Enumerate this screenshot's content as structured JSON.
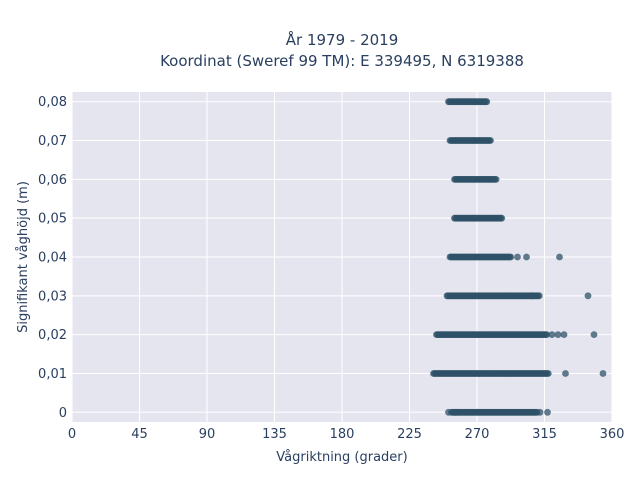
{
  "chart_data": {
    "type": "scatter",
    "title_line1": "År 1979 - 2019",
    "title_line2": "Koordinat (Sweref 99 TM): E 339495, N 6319388",
    "xlabel": "Vågriktning (grader)",
    "ylabel": "Signifikant våghöjd (m)",
    "xlim": [
      0,
      360
    ],
    "ylim": [
      -0.0025,
      0.0825
    ],
    "x_ticks": [
      0,
      45,
      90,
      135,
      180,
      225,
      270,
      315,
      360
    ],
    "x_tick_labels": [
      "0",
      "45",
      "90",
      "135",
      "180",
      "225",
      "270",
      "315",
      "360"
    ],
    "y_ticks": [
      0,
      0.01,
      0.02,
      0.03,
      0.04,
      0.05,
      0.06,
      0.07,
      0.08
    ],
    "y_tick_labels": [
      "0",
      "0,01",
      "0,02",
      "0,03",
      "0,04",
      "0,05",
      "0,06",
      "0,07",
      "0,08"
    ],
    "grid": true,
    "background": "#e5e5f0",
    "marker_color": "#2f5168",
    "bands": [
      {
        "y": 0.08,
        "x_start": 251,
        "x_end": 277
      },
      {
        "y": 0.07,
        "x_start": 252,
        "x_end": 279
      },
      {
        "y": 0.06,
        "x_start": 255,
        "x_end": 283
      },
      {
        "y": 0.05,
        "x_start": 255,
        "x_end": 287
      },
      {
        "y": 0.04,
        "x_start": 252,
        "x_end": 293
      },
      {
        "y": 0.03,
        "x_start": 250,
        "x_end": 312
      },
      {
        "y": 0.02,
        "x_start": 243,
        "x_end": 317
      },
      {
        "y": 0.01,
        "x_start": 241,
        "x_end": 318
      },
      {
        "y": 0.0,
        "x_start": 253,
        "x_end": 310
      }
    ],
    "outliers": [
      {
        "x": 297,
        "y": 0.04
      },
      {
        "x": 303,
        "y": 0.04
      },
      {
        "x": 325,
        "y": 0.04
      },
      {
        "x": 307,
        "y": 0.03
      },
      {
        "x": 344,
        "y": 0.03
      },
      {
        "x": 320,
        "y": 0.02
      },
      {
        "x": 324,
        "y": 0.02
      },
      {
        "x": 328,
        "y": 0.02
      },
      {
        "x": 348,
        "y": 0.02
      },
      {
        "x": 329,
        "y": 0.01
      },
      {
        "x": 354,
        "y": 0.01
      },
      {
        "x": 251,
        "y": 0.0
      },
      {
        "x": 256,
        "y": 0.0
      },
      {
        "x": 312,
        "y": 0.0
      },
      {
        "x": 317,
        "y": 0.0
      }
    ]
  }
}
